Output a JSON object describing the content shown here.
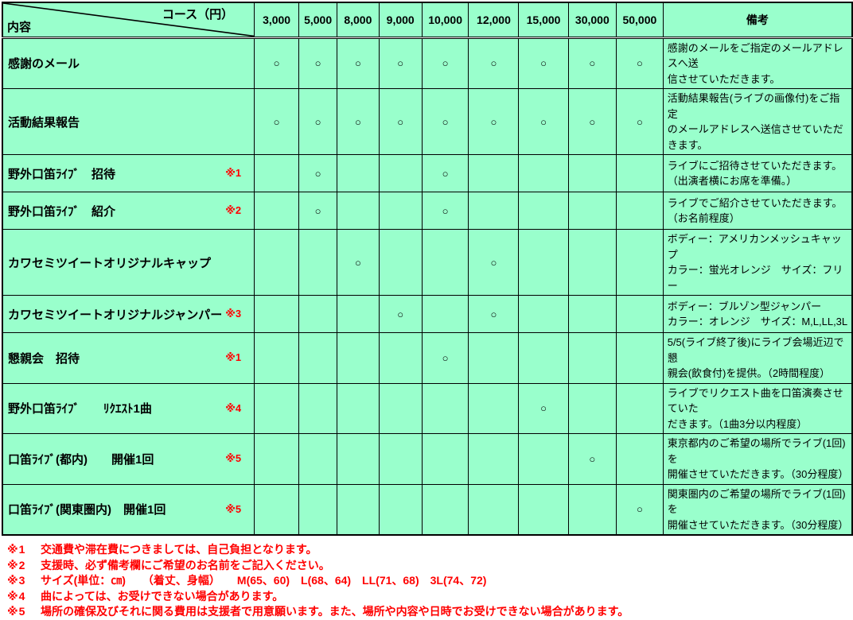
{
  "page": {
    "cell_bg": "#99FFCC",
    "note_color": "#FF0000"
  },
  "table": {
    "corner": {
      "top_label": "コース（円）",
      "bottom_label": "内容"
    },
    "price_columns": [
      "3,000",
      "5,000",
      "8,000",
      "9,000",
      "10,000",
      "12,000",
      "15,000",
      "30,000",
      "50,000"
    ],
    "remarks_header": "備考",
    "mark_symbol": "○",
    "rows": [
      {
        "label": "感謝のメール",
        "note_ref": "",
        "marks": [
          1,
          1,
          1,
          1,
          1,
          1,
          1,
          1,
          1
        ],
        "remark": "感謝のメールをご指定のメールアドレスへ送\n信させていただきます。"
      },
      {
        "label": "活動結果報告",
        "note_ref": "",
        "marks": [
          1,
          1,
          1,
          1,
          1,
          1,
          1,
          1,
          1
        ],
        "remark": "活動結果報告(ライブの画像付)をご指定\nのメールアドレスへ送信させていただきます。"
      },
      {
        "label": "野外口笛ﾗｲﾌﾞ　招待",
        "note_ref": "※1",
        "marks": [
          0,
          1,
          0,
          0,
          1,
          0,
          0,
          0,
          0
        ],
        "remark": "ライブにご招待させていただきます。\n（出演者横にお席を準備。）"
      },
      {
        "label": "野外口笛ﾗｲﾌﾞ　紹介",
        "note_ref": "※2",
        "marks": [
          0,
          1,
          0,
          0,
          1,
          0,
          0,
          0,
          0
        ],
        "remark": "ライブでご紹介させていただきます。\n（お名前程度）"
      },
      {
        "label": "カワセミツイートオリジナルキャップ",
        "note_ref": "",
        "marks": [
          0,
          0,
          1,
          0,
          0,
          1,
          0,
          0,
          0
        ],
        "remark": "ボディー：アメリカンメッシュキャップ\nカラー：蛍光オレンジ　サイズ：フリー"
      },
      {
        "label": "カワセミツイートオリジナルジャンパー",
        "note_ref": "※3",
        "marks": [
          0,
          0,
          0,
          1,
          0,
          1,
          0,
          0,
          0
        ],
        "remark": "ボディー：ブルゾン型ジャンパー\nカラー：オレンジ　サイズ：M,L,LL,3L"
      },
      {
        "label": "懇親会　招待",
        "note_ref": "※1",
        "marks": [
          0,
          0,
          0,
          0,
          1,
          0,
          0,
          0,
          0
        ],
        "remark": "5/5(ライブ終了後)にライブ会場近辺で懇\n親会(飲食付)を提供。（2時間程度）"
      },
      {
        "label": "野外口笛ﾗｲﾌﾞ　　ﾘｸｴｽﾄ1曲",
        "note_ref": "※4",
        "marks": [
          0,
          0,
          0,
          0,
          0,
          0,
          1,
          0,
          0
        ],
        "remark": "ライブでリクエスト曲を口笛演奏させていた\nだきます。（1曲3分以内程度）"
      },
      {
        "label": "口笛ﾗｲﾌﾞ(都内)　　開催1回",
        "note_ref": "※5",
        "marks": [
          0,
          0,
          0,
          0,
          0,
          0,
          0,
          1,
          0
        ],
        "remark": "東京都内のご希望の場所でライブ(1回)を\n開催させていただきます。（30分程度）"
      },
      {
        "label": "口笛ﾗｲﾌﾞ(関東圏内)　開催1回",
        "note_ref": "※5",
        "marks": [
          0,
          0,
          0,
          0,
          0,
          0,
          0,
          0,
          1
        ],
        "remark": "関東圏内のご希望の場所でライブ(1回)を\n開催させていただきます。（30分程度）"
      }
    ]
  },
  "footnotes": [
    {
      "ref": "※1",
      "text": "交通費や滞在費につきましては、自己負担となります。"
    },
    {
      "ref": "※2",
      "text": "支援時、必ず備考欄にご希望のお名前をご記入ください。"
    },
    {
      "ref": "※3",
      "text": "サイズ(単位：㎝)　　（着丈、身幅）　　M(65、60)　L(68、64)　LL(71、68)　3L(74、72)"
    },
    {
      "ref": "※4",
      "text": "曲によっては、お受けできない場合があります。"
    },
    {
      "ref": "※5",
      "text": "場所の確保及びそれに関る費用は支援者で用意願います。また、場所や内容や日時でお受けできない場合があります。"
    }
  ]
}
